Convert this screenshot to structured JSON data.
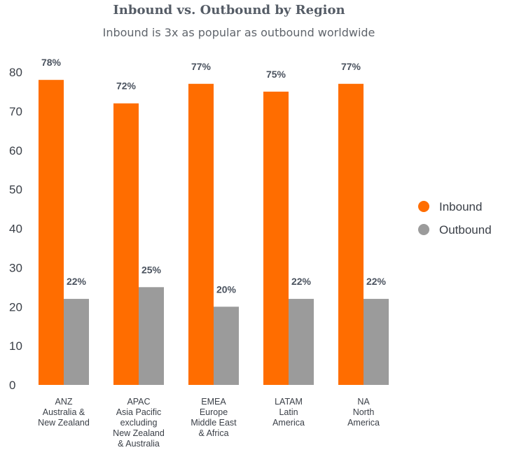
{
  "chart_data": {
    "type": "bar",
    "title": "Inbound vs. Outbound by Region",
    "subtitle": "Inbound is 3x as popular as outbound worldwide",
    "ylim": [
      0,
      80
    ],
    "yticks": [
      0,
      10,
      20,
      30,
      40,
      50,
      60,
      70,
      80
    ],
    "grid": false,
    "legend_position": "right",
    "categories": [
      [
        "ANZ",
        "Australia &",
        "New Zealand"
      ],
      [
        "APAC",
        "Asia Pacific",
        "excluding",
        "New Zealand",
        "& Australia"
      ],
      [
        "EMEA",
        "Europe",
        "Middle East",
        "& Africa"
      ],
      [
        "LATAM",
        "Latin",
        "America"
      ],
      [
        "NA",
        "North",
        "America"
      ]
    ],
    "series": [
      {
        "name": "Inbound",
        "color": "#ff6d00",
        "values": [
          78,
          72,
          77,
          75,
          77
        ],
        "labels": [
          "78%",
          "72%",
          "77%",
          "75%",
          "77%"
        ]
      },
      {
        "name": "Outbound",
        "color": "#9b9b9b",
        "values": [
          22,
          25,
          20,
          22,
          22
        ],
        "labels": [
          "22%",
          "25%",
          "20%",
          "22%",
          "22%"
        ]
      }
    ]
  }
}
